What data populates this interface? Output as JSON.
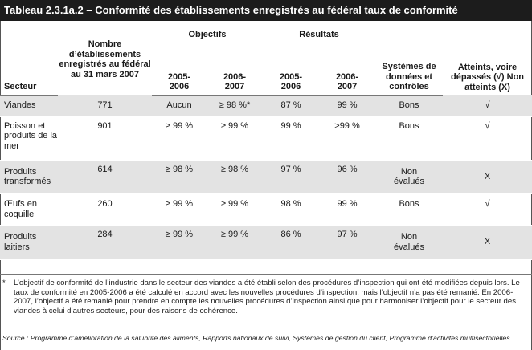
{
  "title": "Tableau 2.3.1a.2 – Conformité des établissements enregistrés au fédéral taux de conformité",
  "headers": {
    "secteur": "Secteur",
    "nombre": "Nombre d’établissements enregistrés au fédéral au 31 mars 2007",
    "objectifs": "Objectifs",
    "resultats": "Résultats",
    "obj_2005": "2005-2006",
    "obj_2006": "2006-2007",
    "res_2005": "2005-2006",
    "res_2006": "2006-2007",
    "systemes": "Systèmes de données et contrôles",
    "atteints": "Atteints, voire dépassés (√) Non atteints (X)"
  },
  "rows": [
    {
      "secteur": "Viandes",
      "nombre": "771",
      "obj_2005": "Aucun",
      "obj_2006": "≥ 98 %*",
      "res_2005": "87 %",
      "res_2006": "99 %",
      "systemes": "Bons",
      "atteints": "√"
    },
    {
      "secteur": "Poisson et produits de la mer",
      "nombre": "901",
      "obj_2005": "≥ 99 %",
      "obj_2006": "≥ 99 %",
      "res_2005": "99 %",
      "res_2006": ">99 %",
      "systemes": "Bons",
      "atteints": "√"
    },
    {
      "secteur": "Produits transformés",
      "nombre": "614",
      "obj_2005": "≥ 98 %",
      "obj_2006": "≥ 98 %",
      "res_2005": "97 %",
      "res_2006": "96 %",
      "systemes": "Non évalués",
      "atteints": "X"
    },
    {
      "secteur": "Œufs en coquille",
      "nombre": "260",
      "obj_2005": "≥ 99 %",
      "obj_2006": "≥ 99 %",
      "res_2005": "98 %",
      "res_2006": "99 %",
      "systemes": "Bons",
      "atteints": "√"
    },
    {
      "secteur": "Produits laitiers",
      "nombre": "284",
      "obj_2005": "≥ 99 %",
      "obj_2006": "≥ 99 %",
      "res_2005": "86 %",
      "res_2006": "97 %",
      "systemes": "Non évalués",
      "atteints": "X"
    }
  ],
  "footnote_marker": "*",
  "footnote": "L’objectif de conformité de l’industrie dans le secteur des viandes a été établi selon des procédures d’inspection qui ont été modifiées depuis lors. Le taux de conformité en 2005-2006 a été calculé en accord avec les nouvelles procédures d’inspection, mais l’objectif n’a pas été remanié. En 2006-2007, l’objectif a été remanié pour prendre en compte les nouvelles procédures d’inspection ainsi que pour harmoniser l’objectif pour le secteur des viandes à celui d’autres secteurs, pour des raisons de cohérence.",
  "source": "Source : Programme d’amélioration de la salubrité des aliments, Rapports nationaux de suivi, Systèmes de gestion du client, Programme d’activités multisectorielles."
}
